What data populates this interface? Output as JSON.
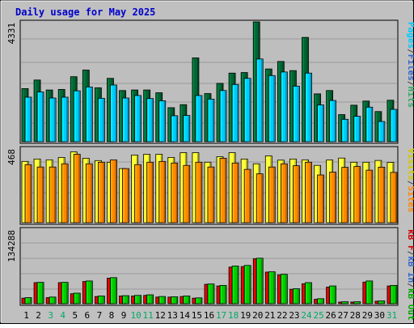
{
  "chart_data": {
    "type": "bar",
    "title": "Daily usage for May 2025",
    "categories": [
      "1",
      "2",
      "3",
      "4",
      "5",
      "6",
      "7",
      "8",
      "9",
      "10",
      "11",
      "12",
      "13",
      "14",
      "15",
      "16",
      "17",
      "18",
      "19",
      "20",
      "21",
      "22",
      "23",
      "24",
      "25",
      "26",
      "27",
      "28",
      "29",
      "30",
      "31"
    ],
    "weekend_days": [
      "3",
      "4",
      "10",
      "11",
      "17",
      "18",
      "24",
      "25",
      "31"
    ],
    "panels": [
      {
        "key": "hits",
        "ymax_label": "4331",
        "ylim": [
          0,
          4331
        ],
        "series": [
          {
            "name": "Hits",
            "color": "#006633",
            "values": [
              1920,
              2230,
              1870,
              1890,
              2350,
              2590,
              1950,
              2290,
              1850,
              1870,
              1870,
              1770,
              1230,
              1340,
              3030,
              1740,
              2110,
              2480,
              2500,
              4331,
              2630,
              2900,
              2570,
              3770,
              1730,
              1850,
              980,
              1320,
              1470,
              1090,
              1500
            ]
          },
          {
            "name": "Files",
            "color": "#00ccff",
            "values": [
              1610,
              1800,
              1580,
              1610,
              1840,
              1980,
              1570,
              2050,
              1580,
              1670,
              1560,
              1480,
              940,
              950,
              1670,
              1540,
              1850,
              2070,
              2290,
              2990,
              2390,
              2520,
              2010,
              2480,
              1330,
              1490,
              810,
              920,
              1250,
              730,
              1170
            ]
          },
          {
            "name": "Pages",
            "color": "#00ccff",
            "values": []
          }
        ],
        "legend": [
          "Pages",
          "/",
          "Files",
          "/",
          "Hits"
        ],
        "legend_colors": [
          "#00ccff",
          "#444444",
          "#3366cc",
          "#444444",
          "#33aa66"
        ]
      },
      {
        "key": "visits",
        "ymax_label": "468",
        "ylim": [
          0,
          468
        ],
        "series": [
          {
            "name": "Visits",
            "color": "#ffff33",
            "values": [
              385,
              400,
              395,
              410,
              445,
              405,
              390,
              380,
              340,
              425,
              430,
              430,
              410,
              440,
              440,
              380,
              415,
              440,
              400,
              370,
              420,
              393,
              400,
              395,
              360,
              394,
              406,
              380,
              380,
              391,
              379
            ]
          },
          {
            "name": "Sites",
            "color": "#ff8800",
            "values": [
              365,
              350,
              350,
              370,
              430,
              370,
              380,
              395,
              340,
              365,
              380,
              385,
              375,
              360,
              380,
              350,
              405,
              375,
              335,
              307,
              350,
              370,
              358,
              380,
              300,
              318,
              348,
              353,
              330,
              349,
              316
            ]
          }
        ],
        "legend": [
          "Visits",
          "/",
          "Sites"
        ],
        "legend_colors": [
          "#cccc00",
          "#444444",
          "#ff8800"
        ]
      },
      {
        "key": "kbytes",
        "ymax_label": "134288",
        "ylim": [
          0,
          134288
        ],
        "series": [
          {
            "name": "kB F",
            "color": "#cc0000",
            "values": [
              10000,
              38000,
              11000,
              38000,
              18000,
              40000,
              13000,
              46000,
              14000,
              14000,
              15000,
              12000,
              12000,
              13000,
              10000,
              35000,
              32000,
              66000,
              67000,
              81000,
              57000,
              52000,
              26000,
              36000,
              8000,
              30000,
              3000,
              3000,
              39000,
              4500,
              32000
            ]
          },
          {
            "name": "kB In",
            "color": "#00cc00",
            "values": [
              11000,
              38500,
              12000,
              38500,
              19000,
              41000,
              14000,
              47000,
              14500,
              15000,
              16000,
              13000,
              12500,
              14000,
              10500,
              35500,
              33000,
              68000,
              69000,
              82000,
              57500,
              53000,
              27000,
              38000,
              9000,
              32000,
              3500,
              3500,
              41000,
              5000,
              33000
            ]
          }
        ],
        "legend": [
          "kB F",
          "/",
          "kB In",
          "/",
          "kB Out"
        ],
        "legend_colors": [
          "#cc0000",
          "#444444",
          "#3366cc",
          "#444444",
          "#00aa00"
        ]
      }
    ]
  },
  "colors": {
    "background": "#c0c0c0",
    "plot_background": "#bebebe",
    "title": "#0000cc",
    "weekend": "#00aa66",
    "weekday": "#000000"
  }
}
